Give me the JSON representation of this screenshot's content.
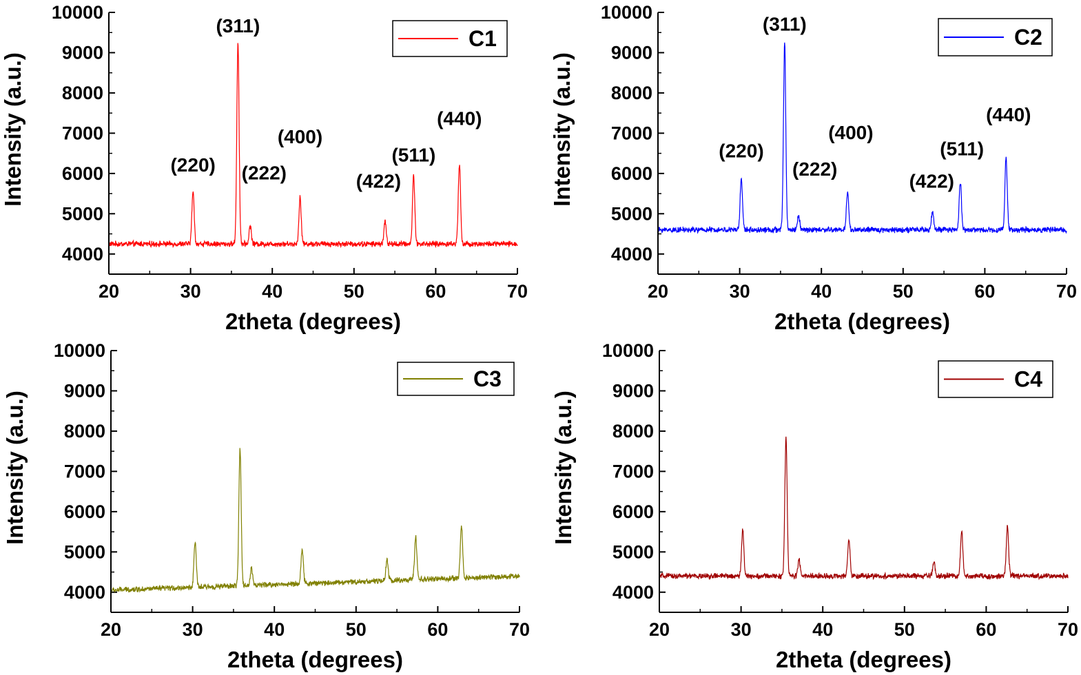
{
  "chart_data": [
    {
      "type": "line",
      "panel": "top-left",
      "xlabel": "2theta (degrees)",
      "ylabel": "Intensity (a.u.)",
      "xlim": [
        20,
        70
      ],
      "ylim": [
        3500,
        10000
      ],
      "xticks": [
        "20",
        "30",
        "40",
        "50",
        "60",
        "70"
      ],
      "yticks": [
        "4000",
        "5000",
        "6000",
        "7000",
        "8000",
        "9000",
        "10000"
      ],
      "legend_position": "top-right",
      "series": [
        {
          "name": "C1",
          "color": "#ff0000",
          "baseline": 4250,
          "noise": 55,
          "peaks": [
            {
              "x": 30.3,
              "y": 5550
            },
            {
              "x": 35.8,
              "y": 9250
            },
            {
              "x": 37.3,
              "y": 4700
            },
            {
              "x": 43.4,
              "y": 5400
            },
            {
              "x": 53.8,
              "y": 4800
            },
            {
              "x": 57.3,
              "y": 5950
            },
            {
              "x": 62.9,
              "y": 6250
            }
          ]
        }
      ],
      "annotations": [
        {
          "text": "(220)",
          "x": 30.3,
          "y": 6050
        },
        {
          "text": "(311)",
          "x": 35.8,
          "y": 9500
        },
        {
          "text": "(222)",
          "x": 39.0,
          "y": 5850
        },
        {
          "text": "(400)",
          "x": 43.4,
          "y": 6750
        },
        {
          "text": "(422)",
          "x": 53.0,
          "y": 5650
        },
        {
          "text": "(511)",
          "x": 57.3,
          "y": 6300
        },
        {
          "text": "(440)",
          "x": 62.9,
          "y": 7200
        }
      ]
    },
    {
      "type": "line",
      "panel": "top-right",
      "xlabel": "2theta (degrees)",
      "ylabel": "Intensity (a.u.)",
      "xlim": [
        20,
        70
      ],
      "ylim": [
        3500,
        10000
      ],
      "xticks": [
        "20",
        "30",
        "40",
        "50",
        "60",
        "70"
      ],
      "yticks": [
        "4000",
        "5000",
        "6000",
        "7000",
        "8000",
        "9000",
        "10000"
      ],
      "legend_position": "top-right",
      "series": [
        {
          "name": "C2",
          "color": "#0000ff",
          "baseline": 4600,
          "noise": 55,
          "peaks": [
            {
              "x": 30.2,
              "y": 5900
            },
            {
              "x": 35.5,
              "y": 9250
            },
            {
              "x": 37.2,
              "y": 4950
            },
            {
              "x": 43.2,
              "y": 5550
            },
            {
              "x": 53.6,
              "y": 5050
            },
            {
              "x": 57.0,
              "y": 5800
            },
            {
              "x": 62.6,
              "y": 6400
            }
          ]
        }
      ],
      "annotations": [
        {
          "text": "(220)",
          "x": 30.2,
          "y": 6400
        },
        {
          "text": "(311)",
          "x": 35.5,
          "y": 9550
        },
        {
          "text": "(222)",
          "x": 39.2,
          "y": 5950
        },
        {
          "text": "(400)",
          "x": 43.6,
          "y": 6850
        },
        {
          "text": "(422)",
          "x": 53.5,
          "y": 5650
        },
        {
          "text": "(511)",
          "x": 57.2,
          "y": 6450
        },
        {
          "text": "(440)",
          "x": 62.9,
          "y": 7300
        }
      ]
    },
    {
      "type": "line",
      "panel": "bottom-left",
      "xlabel": "2theta (degrees)",
      "ylabel": "Intensity (a.u.)",
      "xlim": [
        20,
        70
      ],
      "ylim": [
        3500,
        10000
      ],
      "xticks": [
        "20",
        "30",
        "40",
        "50",
        "60",
        "70"
      ],
      "yticks": [
        "4000",
        "5000",
        "6000",
        "7000",
        "8000",
        "9000",
        "10000"
      ],
      "legend_position": "top-right",
      "series": [
        {
          "name": "C3",
          "color": "#808000",
          "baseline_start": 4050,
          "baseline_end": 4400,
          "noise": 55,
          "peaks": [
            {
              "x": 30.3,
              "y": 5250
            },
            {
              "x": 35.8,
              "y": 7550
            },
            {
              "x": 37.2,
              "y": 4600
            },
            {
              "x": 43.4,
              "y": 5050
            },
            {
              "x": 53.8,
              "y": 4800
            },
            {
              "x": 57.3,
              "y": 5350
            },
            {
              "x": 62.9,
              "y": 5650
            }
          ]
        }
      ],
      "annotations": []
    },
    {
      "type": "line",
      "panel": "bottom-right",
      "xlabel": "2theta (degrees)",
      "ylabel": "Intensity (a.u.)",
      "xlim": [
        20,
        70
      ],
      "ylim": [
        3500,
        10000
      ],
      "xticks": [
        "20",
        "30",
        "40",
        "50",
        "60",
        "70"
      ],
      "yticks": [
        "4000",
        "5000",
        "6000",
        "7000",
        "8000",
        "9000",
        "10000"
      ],
      "legend_position": "top-right",
      "series": [
        {
          "name": "C4",
          "color": "#a00000",
          "baseline": 4400,
          "noise": 55,
          "peaks": [
            {
              "x": 30.2,
              "y": 5550
            },
            {
              "x": 35.5,
              "y": 7850
            },
            {
              "x": 37.1,
              "y": 4800
            },
            {
              "x": 43.2,
              "y": 5300
            },
            {
              "x": 53.6,
              "y": 4750
            },
            {
              "x": 57.0,
              "y": 5500
            },
            {
              "x": 62.6,
              "y": 5650
            }
          ]
        }
      ],
      "annotations": []
    }
  ]
}
